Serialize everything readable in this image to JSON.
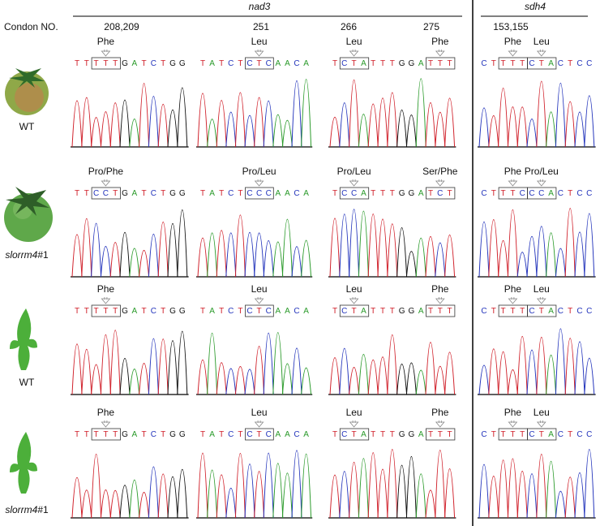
{
  "header": {
    "gene_groups": [
      "nad3",
      "sdh4"
    ],
    "codon_label": "Condon NO.",
    "codon_numbers": [
      "208,209",
      "251",
      "266",
      "275",
      "153,155"
    ]
  },
  "rows": [
    {
      "label_parts": [
        "WT"
      ],
      "panels": [
        {
          "sequence": "TTTTTGATCTGG",
          "labels": [
            "Phe"
          ]
        },
        {
          "sequence": "TATCTCTCAACA",
          "labels": [
            "Leu"
          ]
        },
        {
          "sequence": "TCTATTTGGATTT",
          "labels": [
            "Leu",
            "Phe"
          ]
        },
        {
          "sequence": "CTTTTCTACTCC",
          "labels": [
            "Phe",
            "Leu"
          ]
        }
      ]
    },
    {
      "label_parts": [
        "slorrm4",
        "#1"
      ],
      "panels": [
        {
          "sequence": "TTCCTGATCTGG",
          "labels": [
            "Pro/Phe"
          ]
        },
        {
          "sequence": "TATCTCCCAACA",
          "labels": [
            "Pro/Leu"
          ]
        },
        {
          "sequence": "TCCATTTGGATCT",
          "labels": [
            "Pro/Leu",
            "Ser/Phe"
          ]
        },
        {
          "sequence": "CTTTCCCACTCC",
          "labels": [
            "Phe",
            "Pro/Leu"
          ]
        }
      ]
    },
    {
      "label_parts": [
        "WT"
      ],
      "panels": [
        {
          "sequence": "TTTTTGATCTGG",
          "labels": [
            "Phe"
          ]
        },
        {
          "sequence": "TATCTCTCAACA",
          "labels": [
            "Leu"
          ]
        },
        {
          "sequence": "TCTATTTGGATTT",
          "labels": [
            "Leu",
            "Phe"
          ]
        },
        {
          "sequence": "CTTTTCTACTCC",
          "labels": [
            "Phe",
            "Leu"
          ]
        }
      ]
    },
    {
      "label_parts": [
        "slorrm4",
        "#1"
      ],
      "panels": [
        {
          "sequence": "TTTTTGATCTGG",
          "labels": [
            "Phe"
          ]
        },
        {
          "sequence": "TATCTCTCAACA",
          "labels": [
            "Leu"
          ]
        },
        {
          "sequence": "TCTATTTGGATTT",
          "labels": [
            "Leu",
            "Phe"
          ]
        },
        {
          "sequence": "CTTTTCTACTCC",
          "labels": [
            "Phe",
            "Leu"
          ]
        }
      ]
    }
  ]
}
